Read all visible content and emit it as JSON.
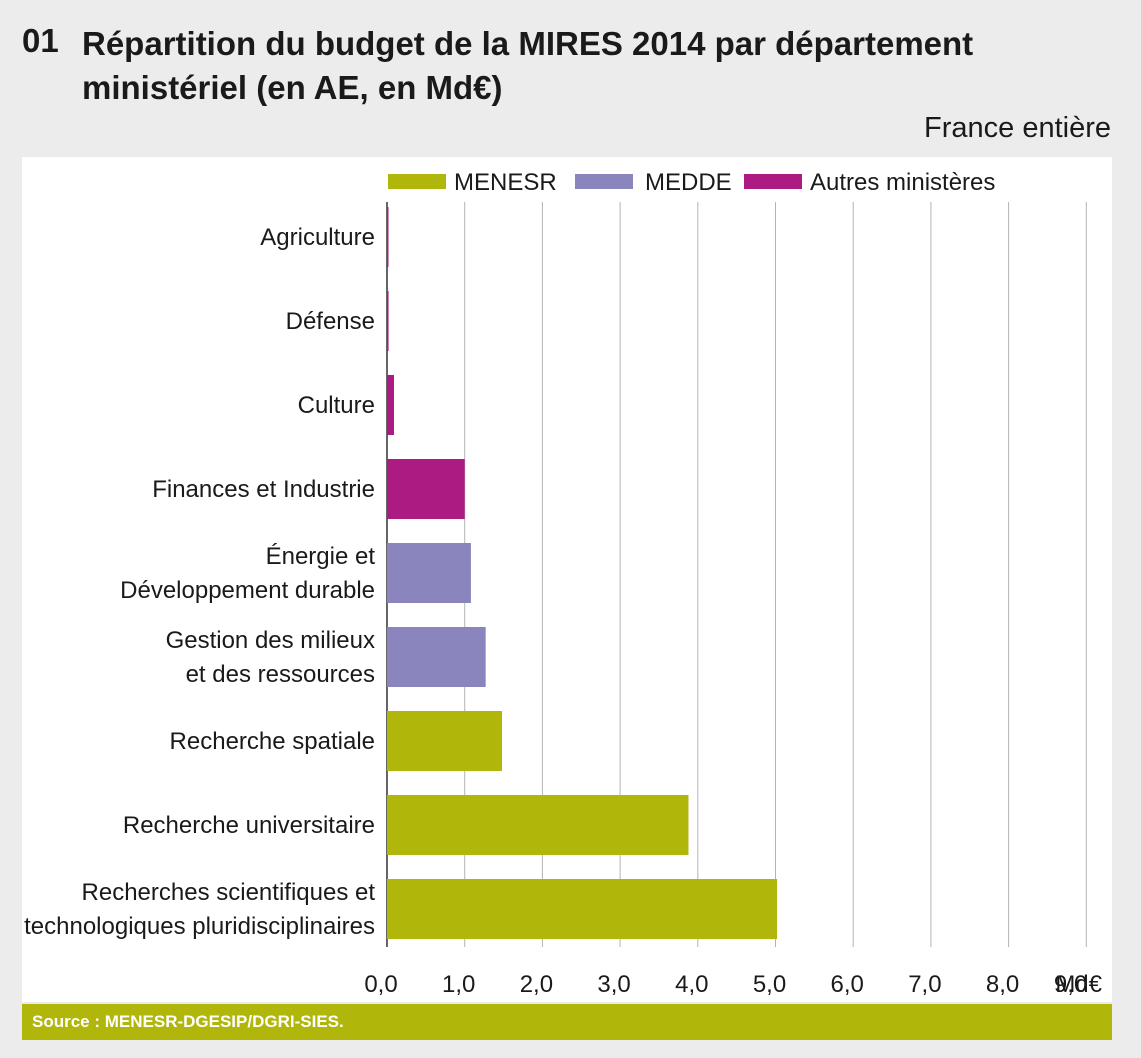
{
  "figure": {
    "number": "01",
    "title": "Répartition du budget de la MIRES 2014 par département ministériel (en AE, en Md€)",
    "scope": "France entière",
    "source": "Source : MENESR-DGESIP/DGRI-SIES."
  },
  "chart_data": {
    "type": "bar",
    "orientation": "horizontal",
    "unit": "Md€",
    "categories": [
      [
        "Agriculture"
      ],
      [
        "Défense"
      ],
      [
        "Culture"
      ],
      [
        "Finances et Industrie"
      ],
      [
        "Énergie et",
        "Développement durable"
      ],
      [
        "Gestion des milieux",
        "et des ressources"
      ],
      [
        "Recherche spatiale"
      ],
      [
        "Recherche universitaire"
      ],
      [
        "Recherches scientifiques et",
        "technologiques pluridisciplinaires"
      ]
    ],
    "values": [
      0.01,
      0.02,
      0.09,
      1.0,
      1.08,
      1.27,
      1.48,
      3.88,
      5.02
    ],
    "groups": [
      "Autres ministères",
      "Autres ministères",
      "Autres ministères",
      "Autres ministères",
      "MEDDE",
      "MEDDE",
      "MENESR",
      "MENESR",
      "MENESR"
    ],
    "legend": [
      {
        "name": "MENESR",
        "color": "#b0b70a"
      },
      {
        "name": "MEDDE",
        "color": "#8a85bd"
      },
      {
        "name": "Autres ministères",
        "color": "#ac1b82"
      }
    ],
    "xlim": [
      0,
      9
    ],
    "xticks": [
      "0,0",
      "1,0",
      "2,0",
      "3,0",
      "4,0",
      "5,0",
      "6,0",
      "7,0",
      "8,0",
      "9,0"
    ],
    "legend_position": "top",
    "grid": "vertical"
  }
}
